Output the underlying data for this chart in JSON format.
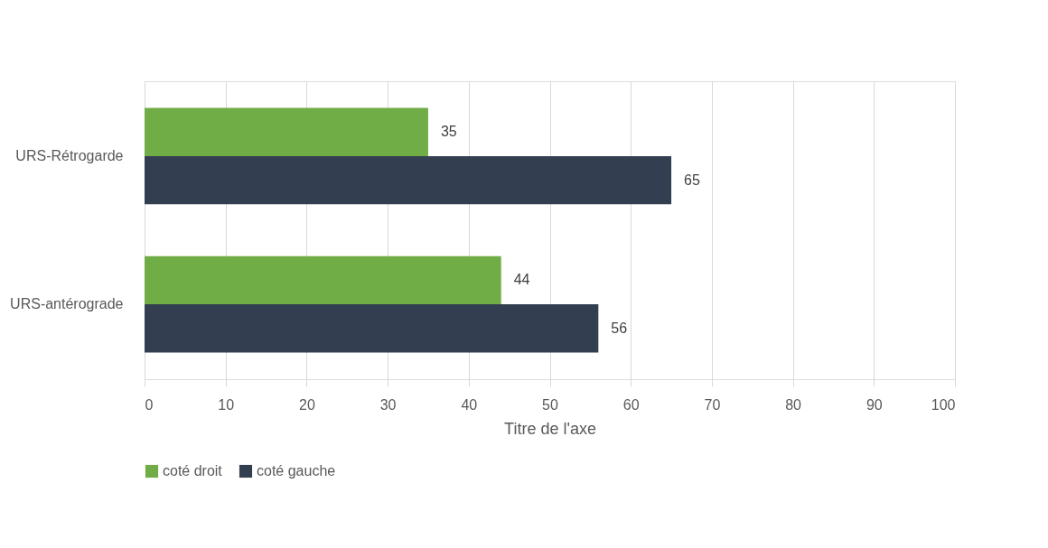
{
  "chart_data": {
    "type": "bar",
    "orientation": "horizontal",
    "categories": [
      "URS-Rétrogarde",
      "URS-antérograde"
    ],
    "xlabel": "Titre de l'axe",
    "series": [
      {
        "name": "coté droit",
        "color": "#70ad47",
        "values": [
          35,
          44
        ]
      },
      {
        "name": "coté gauche",
        "color": "#333f50",
        "values": [
          65,
          56
        ]
      }
    ],
    "xlim": [
      0,
      100
    ],
    "xticks": [
      0,
      10,
      20,
      30,
      40,
      50,
      60,
      70,
      80,
      90,
      100
    ],
    "grid": "x",
    "legend": "bottom",
    "data_labels": true
  }
}
